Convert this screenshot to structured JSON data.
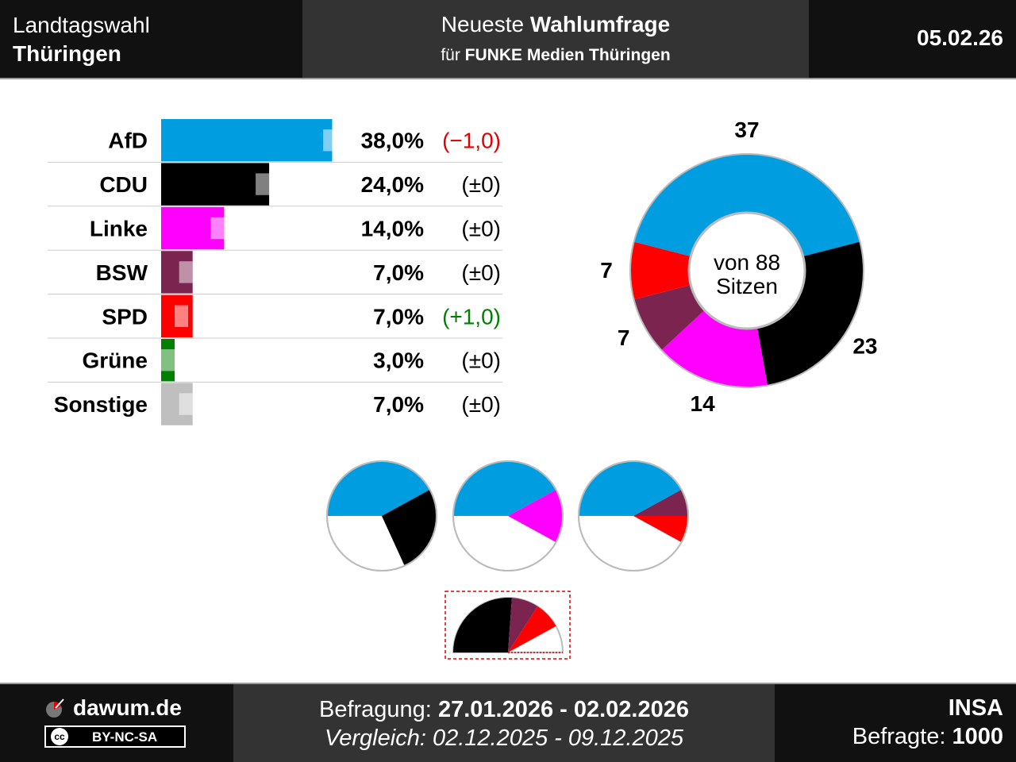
{
  "header": {
    "election_line1": "Landtagswahl",
    "election_line2": "Thüringen",
    "title_prefix": "Neueste ",
    "title_bold": "Wahlumfrage",
    "subtitle_prefix": "für ",
    "subtitle_bold": "FUNKE Medien Thüringen",
    "date": "05.02.26"
  },
  "footer": {
    "brand": "dawum.de",
    "license": "BY-NC-SA",
    "license_icon": "cc",
    "survey_label": "Befragung: ",
    "survey_period": "27.01.2026 - 02.02.2026",
    "compare_text": "Vergleich: 02.12.2025 - 09.12.2025",
    "institute": "INSA",
    "respondents_label": "Befragte: ",
    "respondents": "1000"
  },
  "colors": {
    "AfD": "#009ee0",
    "CDU": "#000000",
    "Linke": "#ff00ff",
    "BSW": "#7b2450",
    "SPD": "#ff0000",
    "Grüne": "#008000",
    "Sonstige": "#bfbfbf",
    "positive": "#008000",
    "negative": "#e00000",
    "neutral": "#000000"
  },
  "chart_data": [
    {
      "type": "bar",
      "categories": [
        "AfD",
        "CDU",
        "Linke",
        "BSW",
        "SPD",
        "Grüne",
        "Sonstige"
      ],
      "values": [
        38.0,
        24.0,
        14.0,
        7.0,
        7.0,
        3.0,
        7.0
      ],
      "previous_values": [
        39.0,
        24.0,
        14.0,
        7.0,
        6.0,
        3.0,
        7.0
      ],
      "value_labels": [
        "38,0%",
        "24,0%",
        "14,0%",
        "7,0%",
        "7,0%",
        "3,0%",
        "7,0%"
      ],
      "change_labels": [
        "(−1,0)",
        "(±0)",
        "(±0)",
        "(±0)",
        "(+1,0)",
        "(±0)",
        "(±0)"
      ],
      "change_sign": [
        "negative",
        "neutral",
        "neutral",
        "neutral",
        "positive",
        "neutral",
        "neutral"
      ]
    },
    {
      "type": "pie",
      "subtype": "donut",
      "categories": [
        "AfD",
        "CDU",
        "Linke",
        "BSW",
        "SPD"
      ],
      "values": [
        37,
        23,
        14,
        7,
        7
      ],
      "labels": [
        "37",
        "23",
        "14",
        "7",
        "7"
      ],
      "center_line1": "von 88",
      "center_line2": "Sitzen"
    },
    {
      "type": "pie",
      "subtype": "coalitions",
      "total": 88,
      "coalitions": [
        {
          "parties": [
            "AfD",
            "CDU"
          ],
          "values": [
            37,
            23
          ]
        },
        {
          "parties": [
            "AfD",
            "Linke"
          ],
          "values": [
            37,
            14
          ]
        },
        {
          "parties": [
            "AfD",
            "BSW",
            "SPD"
          ],
          "values": [
            37,
            7,
            7
          ]
        }
      ]
    },
    {
      "type": "pie",
      "subtype": "semicircle",
      "total": 88,
      "parties": [
        "CDU",
        "BSW",
        "SPD"
      ],
      "values": [
        23,
        7,
        7
      ]
    }
  ]
}
